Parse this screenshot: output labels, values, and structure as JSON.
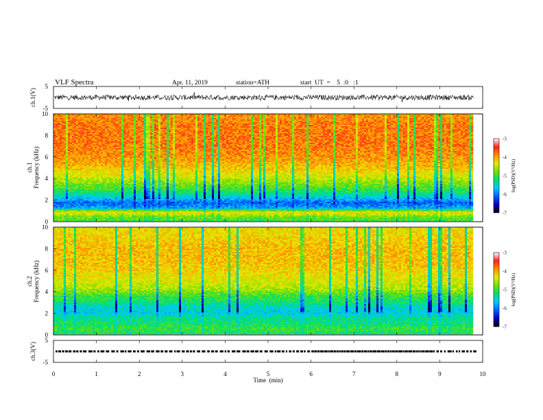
{
  "header": {
    "title": "VLF  Spectra",
    "date": "Apr. 11, 2019",
    "station": "station=ATH",
    "start": "start  UT  =    5  :0   :1"
  },
  "chart_data": {
    "type": "heatmap",
    "x_axis": {
      "label": "Time  (min)",
      "range": [
        0,
        10
      ],
      "ticks": [
        "0",
        "1",
        "2",
        "3",
        "4",
        "5",
        "6",
        "7",
        "8",
        "9",
        "10"
      ],
      "data_end": 9.8
    },
    "panels": [
      {
        "id": "ch1_waveform",
        "type": "line",
        "ylabel": "ch.1(V)",
        "yrange": [
          -5,
          5
        ],
        "yticks": [
          "5",
          "-5"
        ],
        "baseline": 0,
        "amplitude": 1.2
      },
      {
        "id": "ch1_spectrogram",
        "type": "heatmap",
        "ylabel_top": "ch.1",
        "ylabel": "Frequency  (kHz)",
        "yrange": [
          0,
          10
        ],
        "yticks": [
          "0",
          "2",
          "4",
          "6",
          "8",
          "10"
        ],
        "colorbar": {
          "label": "log(PSD)(V²/Hz)",
          "range": [
            -7,
            -3
          ],
          "ticks": [
            "-3",
            "-4",
            "-5",
            "-6",
            "-7"
          ],
          "colormap": [
            "#000000",
            "#0000c8",
            "#0060ff",
            "#00c8ff",
            "#00e070",
            "#78e000",
            "#e8e800",
            "#ff9000",
            "#ff2020",
            "#ffffff"
          ]
        },
        "log_psd_profile": [
          {
            "f": 0.0,
            "v": -5.0
          },
          {
            "f": 0.4,
            "v": -4.8
          },
          {
            "f": 0.8,
            "v": -4.2
          },
          {
            "f": 1.2,
            "v": -5.8
          },
          {
            "f": 1.7,
            "v": -6.1
          },
          {
            "f": 2.2,
            "v": -5.6
          },
          {
            "f": 2.8,
            "v": -5.1
          },
          {
            "f": 3.4,
            "v": -4.8
          },
          {
            "f": 4.0,
            "v": -4.5
          },
          {
            "f": 5.0,
            "v": -4.1
          },
          {
            "f": 6.0,
            "v": -3.9
          },
          {
            "f": 7.0,
            "v": -3.8
          },
          {
            "f": 8.0,
            "v": -3.8
          },
          {
            "f": 9.0,
            "v": -3.8
          },
          {
            "f": 10.0,
            "v": -3.9
          }
        ]
      },
      {
        "id": "ch2_spectrogram",
        "type": "heatmap",
        "ylabel_top": "ch.2",
        "ylabel": "Frequency  (kHz)",
        "yrange": [
          0,
          10
        ],
        "yticks": [
          "0",
          "2",
          "4",
          "6",
          "8",
          "10"
        ],
        "colorbar": {
          "label": "log(PSD)(V²/Hz)",
          "range": [
            -7,
            -3
          ],
          "ticks": [
            "-3",
            "-4",
            "-5",
            "-6",
            "-7"
          ],
          "colormap": [
            "#000000",
            "#0000c8",
            "#0060ff",
            "#00c8ff",
            "#00e070",
            "#78e000",
            "#e8e800",
            "#ff9000",
            "#ff2020",
            "#ffffff"
          ]
        },
        "log_psd_profile": [
          {
            "f": 0.0,
            "v": -5.2
          },
          {
            "f": 0.5,
            "v": -5.0
          },
          {
            "f": 1.0,
            "v": -5.2
          },
          {
            "f": 1.5,
            "v": -5.3
          },
          {
            "f": 2.0,
            "v": -5.6
          },
          {
            "f": 2.5,
            "v": -5.5
          },
          {
            "f": 3.0,
            "v": -5.2
          },
          {
            "f": 3.6,
            "v": -5.0
          },
          {
            "f": 4.2,
            "v": -4.6
          },
          {
            "f": 5.0,
            "v": -4.4
          },
          {
            "f": 6.0,
            "v": -4.2
          },
          {
            "f": 7.0,
            "v": -4.1
          },
          {
            "f": 8.0,
            "v": -4.1
          },
          {
            "f": 9.0,
            "v": -4.2
          },
          {
            "f": 10.0,
            "v": -4.3
          }
        ]
      },
      {
        "id": "ch3_waveform",
        "type": "line",
        "ylabel": "ch.3(V)",
        "yrange": [
          -5,
          5
        ],
        "yticks": [
          "5",
          "-5"
        ],
        "baseline": 0
      }
    ]
  }
}
